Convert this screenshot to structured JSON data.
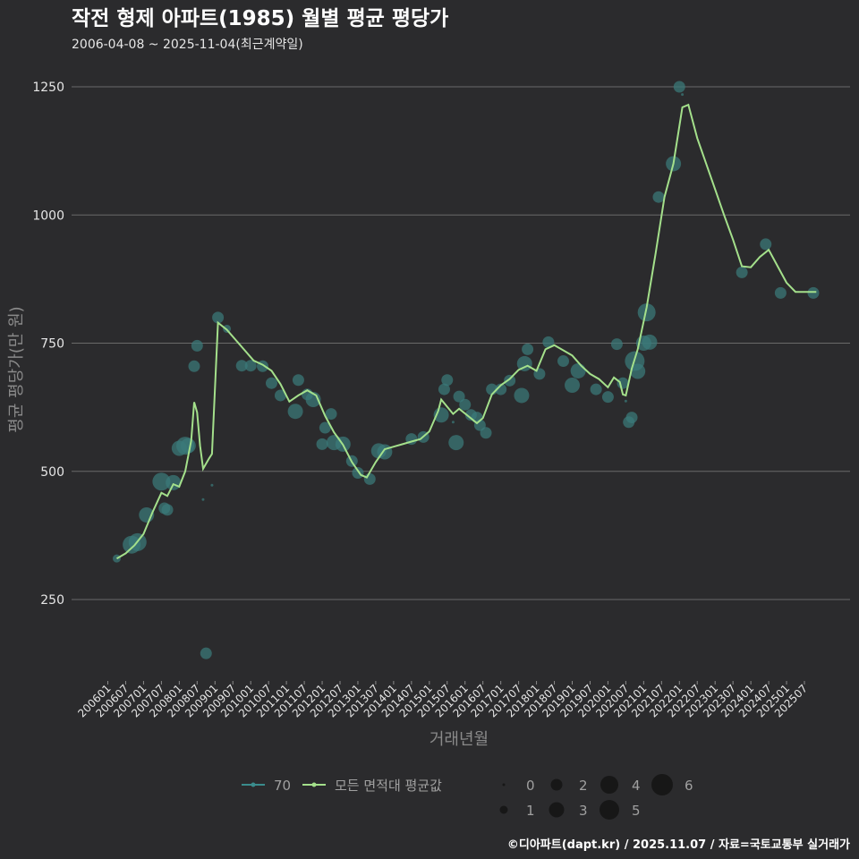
{
  "chart_data": {
    "type": "scatter+line",
    "title": "작전 형제 아파트(1985) 월별 평균 평당가",
    "subtitle": "2006-04-08 ~ 2025-11-04(최근계약일)",
    "xlabel": "거래년월",
    "ylabel": "평균 평당가(만 원)",
    "ylim": [
      100,
      1290
    ],
    "yticks": [
      250,
      500,
      750,
      1000,
      1250
    ],
    "xticks": [
      "200601",
      "200607",
      "200701",
      "200707",
      "200801",
      "200807",
      "200901",
      "200907",
      "201001",
      "201007",
      "201101",
      "201107",
      "201201",
      "201207",
      "201301",
      "201307",
      "201401",
      "201407",
      "201501",
      "201507",
      "201601",
      "201607",
      "201701",
      "201707",
      "201801",
      "201807",
      "201901",
      "201907",
      "202001",
      "202007",
      "202101",
      "202107",
      "202201",
      "202207",
      "202301",
      "202307",
      "202401",
      "202407",
      "202501",
      "202507"
    ],
    "line_series": {
      "name": "모든 면적대 평균값",
      "color": "#a4e08b",
      "points": [
        [
          "2006-04",
          330
        ],
        [
          "2006-07",
          340
        ],
        [
          "2006-10",
          356
        ],
        [
          "2007-01",
          378
        ],
        [
          "2007-04",
          420
        ],
        [
          "2007-07",
          458
        ],
        [
          "2007-09",
          452
        ],
        [
          "2007-11",
          475
        ],
        [
          "2008-01",
          470
        ],
        [
          "2008-03",
          500
        ],
        [
          "2008-05",
          560
        ],
        [
          "2008-06",
          635
        ],
        [
          "2008-07",
          615
        ],
        [
          "2008-08",
          550
        ],
        [
          "2008-09",
          505
        ],
        [
          "2008-11",
          525
        ],
        [
          "2008-12",
          534
        ],
        [
          "2009-02",
          790
        ],
        [
          "2009-05",
          776
        ],
        [
          "2009-08",
          756
        ],
        [
          "2009-11",
          736
        ],
        [
          "2010-02",
          716
        ],
        [
          "2010-05",
          708
        ],
        [
          "2010-08",
          696
        ],
        [
          "2010-11",
          670
        ],
        [
          "2011-02",
          636
        ],
        [
          "2011-05",
          648
        ],
        [
          "2011-08",
          658
        ],
        [
          "2011-11",
          648
        ],
        [
          "2012-02",
          608
        ],
        [
          "2012-05",
          576
        ],
        [
          "2012-08",
          552
        ],
        [
          "2012-11",
          518
        ],
        [
          "2013-02",
          493
        ],
        [
          "2013-04",
          488
        ],
        [
          "2013-07",
          518
        ],
        [
          "2013-10",
          543
        ],
        [
          "2014-01",
          548
        ],
        [
          "2014-04",
          553
        ],
        [
          "2014-07",
          558
        ],
        [
          "2014-10",
          563
        ],
        [
          "2015-01",
          578
        ],
        [
          "2015-04",
          618
        ],
        [
          "2015-05",
          640
        ],
        [
          "2015-07",
          626
        ],
        [
          "2015-09",
          612
        ],
        [
          "2015-11",
          622
        ],
        [
          "2016-02",
          608
        ],
        [
          "2016-05",
          594
        ],
        [
          "2016-07",
          604
        ],
        [
          "2016-10",
          650
        ],
        [
          "2017-01",
          668
        ],
        [
          "2017-04",
          680
        ],
        [
          "2017-07",
          698
        ],
        [
          "2017-10",
          706
        ],
        [
          "2018-01",
          696
        ],
        [
          "2018-04",
          738
        ],
        [
          "2018-07",
          746
        ],
        [
          "2018-10",
          736
        ],
        [
          "2019-01",
          726
        ],
        [
          "2019-04",
          706
        ],
        [
          "2019-07",
          690
        ],
        [
          "2019-10",
          680
        ],
        [
          "2020-01",
          664
        ],
        [
          "2020-03",
          683
        ],
        [
          "2020-05",
          674
        ],
        [
          "2020-06",
          650
        ],
        [
          "2020-07",
          648
        ],
        [
          "2020-09",
          700
        ],
        [
          "2020-11",
          738
        ],
        [
          "2021-02",
          820
        ],
        [
          "2021-05",
          925
        ],
        [
          "2021-08",
          1035
        ],
        [
          "2021-11",
          1100
        ],
        [
          "2022-02",
          1210
        ],
        [
          "2022-04",
          1215
        ],
        [
          "2022-07",
          1150
        ],
        [
          "2022-10",
          1100
        ],
        [
          "2023-01",
          1050
        ],
        [
          "2023-04",
          1000
        ],
        [
          "2023-07",
          952
        ],
        [
          "2023-10",
          900
        ],
        [
          "2024-01",
          898
        ],
        [
          "2024-04",
          918
        ],
        [
          "2024-07",
          932
        ],
        [
          "2024-10",
          900
        ],
        [
          "2025-01",
          868
        ],
        [
          "2025-04",
          850
        ],
        [
          "2025-07",
          850
        ],
        [
          "2025-11",
          850
        ]
      ]
    },
    "scatter_series": {
      "name": "70",
      "color": "#3a7a7a",
      "sizes_legend": [
        0,
        1,
        2,
        3,
        4,
        5,
        6
      ],
      "points": [
        [
          "2006-04",
          330,
          1
        ],
        [
          "2006-09",
          357,
          4
        ],
        [
          "2006-11",
          362,
          4
        ],
        [
          "2007-02",
          415,
          3
        ],
        [
          "2007-07",
          480,
          4
        ],
        [
          "2007-08",
          428,
          2
        ],
        [
          "2007-09",
          425,
          2
        ],
        [
          "2007-11",
          478,
          3
        ],
        [
          "2008-01",
          545,
          3
        ],
        [
          "2008-03",
          550,
          4
        ],
        [
          "2008-04",
          550,
          3
        ],
        [
          "2008-06",
          705,
          2
        ],
        [
          "2008-07",
          745,
          2
        ],
        [
          "2008-09",
          445,
          0
        ],
        [
          "2008-10",
          145,
          2
        ],
        [
          "2008-12",
          473,
          0
        ],
        [
          "2009-02",
          800,
          2
        ],
        [
          "2009-05",
          778,
          1
        ],
        [
          "2009-10",
          706,
          2
        ],
        [
          "2010-01",
          706,
          2
        ],
        [
          "2010-05",
          705,
          2
        ],
        [
          "2010-08",
          672,
          2
        ],
        [
          "2010-11",
          648,
          2
        ],
        [
          "2011-04",
          617,
          3
        ],
        [
          "2011-05",
          678,
          2
        ],
        [
          "2011-08",
          650,
          2
        ],
        [
          "2011-10",
          640,
          3
        ],
        [
          "2012-01",
          553,
          2
        ],
        [
          "2012-02",
          585,
          2
        ],
        [
          "2012-04",
          612,
          2
        ],
        [
          "2012-05",
          556,
          3
        ],
        [
          "2012-08",
          553,
          3
        ],
        [
          "2012-11",
          520,
          2
        ],
        [
          "2013-01",
          497,
          2
        ],
        [
          "2013-05",
          485,
          2
        ],
        [
          "2013-08",
          540,
          3
        ],
        [
          "2013-10",
          538,
          3
        ],
        [
          "2014-07",
          563,
          2
        ],
        [
          "2014-11",
          567,
          2
        ],
        [
          "2015-05",
          610,
          3
        ],
        [
          "2015-06",
          660,
          2
        ],
        [
          "2015-07",
          678,
          2
        ],
        [
          "2015-09",
          596,
          0
        ],
        [
          "2015-10",
          556,
          3
        ],
        [
          "2015-11",
          646,
          2
        ],
        [
          "2016-01",
          630,
          2
        ],
        [
          "2016-03",
          610,
          2
        ],
        [
          "2016-05",
          605,
          2
        ],
        [
          "2016-06",
          590,
          2
        ],
        [
          "2016-08",
          575,
          2
        ],
        [
          "2016-10",
          660,
          2
        ],
        [
          "2017-01",
          660,
          2
        ],
        [
          "2017-04",
          677,
          2
        ],
        [
          "2017-08",
          648,
          3
        ],
        [
          "2017-09",
          710,
          3
        ],
        [
          "2017-10",
          738,
          2
        ],
        [
          "2018-02",
          690,
          2
        ],
        [
          "2018-05",
          752,
          2
        ],
        [
          "2018-10",
          715,
          2
        ],
        [
          "2019-01",
          668,
          3
        ],
        [
          "2019-03",
          696,
          3
        ],
        [
          "2019-09",
          660,
          2
        ],
        [
          "2020-01",
          645,
          2
        ],
        [
          "2020-04",
          748,
          2
        ],
        [
          "2020-06",
          672,
          2
        ],
        [
          "2020-07",
          637,
          0
        ],
        [
          "2020-08",
          596,
          2
        ],
        [
          "2020-09",
          605,
          2
        ],
        [
          "2020-10",
          715,
          5
        ],
        [
          "2020-11",
          695,
          3
        ],
        [
          "2021-01",
          750,
          3
        ],
        [
          "2021-02",
          810,
          4
        ],
        [
          "2021-03",
          752,
          3
        ],
        [
          "2021-06",
          1035,
          2
        ],
        [
          "2021-11",
          1100,
          3
        ],
        [
          "2022-01",
          1250,
          2
        ],
        [
          "2022-02",
          1235,
          0
        ],
        [
          "2023-10",
          888,
          2
        ],
        [
          "2024-06",
          943,
          2
        ],
        [
          "2024-11",
          848,
          2
        ],
        [
          "2025-10",
          848,
          2
        ]
      ]
    },
    "legend": {
      "position": "bottom",
      "line_items": [
        "70",
        "모든 면적대 평균값"
      ],
      "size_items": [
        "0",
        "1",
        "2",
        "3",
        "4",
        "5",
        "6"
      ]
    },
    "caption": "©디아파트(dapt.kr) / 2025.11.07 / 자료=국토교통부 실거래가"
  }
}
